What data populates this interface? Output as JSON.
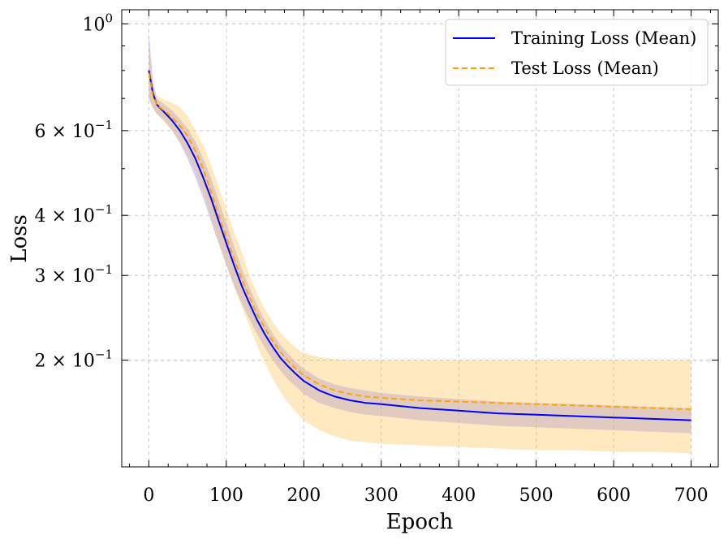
{
  "chart_data": {
    "type": "line",
    "title": "",
    "xlabel": "Epoch",
    "ylabel": "Loss",
    "yscale": "log",
    "xlim": [
      -35,
      735
    ],
    "ylim": [
      0.12,
      1.07
    ],
    "grid": true,
    "legend_position": "top-right",
    "xticks": [
      0,
      100,
      200,
      300,
      400,
      500,
      600,
      700
    ],
    "xtick_labels": [
      "0",
      "100",
      "200",
      "300",
      "400",
      "500",
      "600",
      "700"
    ],
    "yticks": [
      1.0,
      0.6,
      0.4,
      0.3,
      0.2
    ],
    "ytick_labels": [
      {
        "base": "10",
        "exp": "0",
        "coef": ""
      },
      {
        "coef": "6 × ",
        "base": "10",
        "exp": "−1"
      },
      {
        "coef": "4 × ",
        "base": "10",
        "exp": "−1"
      },
      {
        "coef": "3 × ",
        "base": "10",
        "exp": "−1"
      },
      {
        "coef": "2 × ",
        "base": "10",
        "exp": "−1"
      }
    ],
    "minor_yticks": [
      0.5,
      0.7,
      0.8,
      0.9
    ],
    "x": [
      0,
      5,
      10,
      20,
      30,
      40,
      50,
      60,
      70,
      80,
      90,
      100,
      110,
      120,
      130,
      140,
      150,
      160,
      170,
      180,
      190,
      200,
      220,
      240,
      260,
      280,
      300,
      350,
      400,
      450,
      500,
      550,
      600,
      650,
      700
    ],
    "series": [
      {
        "name": "Training Loss (Mean)",
        "color": "#0000ff",
        "style": "solid",
        "values": [
          0.8,
          0.72,
          0.68,
          0.655,
          0.63,
          0.6,
          0.565,
          0.525,
          0.48,
          0.435,
          0.39,
          0.35,
          0.315,
          0.285,
          0.262,
          0.242,
          0.226,
          0.213,
          0.202,
          0.194,
          0.187,
          0.181,
          0.173,
          0.168,
          0.165,
          0.163,
          0.162,
          0.159,
          0.157,
          0.155,
          0.154,
          0.153,
          0.152,
          0.151,
          0.15
        ],
        "band_low": [
          0.7,
          0.67,
          0.65,
          0.63,
          0.6,
          0.565,
          0.525,
          0.48,
          0.435,
          0.39,
          0.35,
          0.315,
          0.285,
          0.262,
          0.243,
          0.226,
          0.212,
          0.2,
          0.19,
          0.182,
          0.176,
          0.17,
          0.163,
          0.159,
          0.156,
          0.154,
          0.153,
          0.15,
          0.148,
          0.146,
          0.145,
          0.144,
          0.143,
          0.142,
          0.141
        ],
        "band_high": [
          0.97,
          0.76,
          0.7,
          0.68,
          0.66,
          0.635,
          0.605,
          0.57,
          0.525,
          0.48,
          0.43,
          0.385,
          0.345,
          0.31,
          0.283,
          0.26,
          0.242,
          0.227,
          0.215,
          0.206,
          0.198,
          0.192,
          0.183,
          0.178,
          0.175,
          0.173,
          0.171,
          0.168,
          0.166,
          0.164,
          0.163,
          0.162,
          0.161,
          0.16,
          0.159
        ]
      },
      {
        "name": "Test Loss (Mean)",
        "color": "#ffa500",
        "style": "dashed",
        "values": [
          0.79,
          0.71,
          0.68,
          0.66,
          0.64,
          0.615,
          0.585,
          0.545,
          0.5,
          0.45,
          0.4,
          0.36,
          0.325,
          0.295,
          0.27,
          0.249,
          0.233,
          0.219,
          0.208,
          0.199,
          0.192,
          0.186,
          0.178,
          0.173,
          0.17,
          0.168,
          0.167,
          0.165,
          0.164,
          0.163,
          0.162,
          0.161,
          0.16,
          0.159,
          0.158
        ],
        "band_low": [
          0.7,
          0.67,
          0.65,
          0.625,
          0.6,
          0.57,
          0.535,
          0.495,
          0.445,
          0.395,
          0.352,
          0.315,
          0.285,
          0.258,
          0.235,
          0.214,
          0.197,
          0.183,
          0.172,
          0.163,
          0.156,
          0.15,
          0.143,
          0.139,
          0.136,
          0.135,
          0.134,
          0.133,
          0.132,
          0.131,
          0.13,
          0.13,
          0.129,
          0.129,
          0.128
        ],
        "band_high": [
          0.92,
          0.76,
          0.71,
          0.695,
          0.685,
          0.67,
          0.645,
          0.6,
          0.56,
          0.51,
          0.46,
          0.41,
          0.37,
          0.335,
          0.3,
          0.274,
          0.255,
          0.24,
          0.228,
          0.219,
          0.212,
          0.207,
          0.203,
          0.201,
          0.2,
          0.2,
          0.2,
          0.2,
          0.2,
          0.2,
          0.2,
          0.2,
          0.2,
          0.2,
          0.2
        ]
      }
    ],
    "legend": [
      "Training Loss (Mean)",
      "Test Loss (Mean)"
    ]
  }
}
